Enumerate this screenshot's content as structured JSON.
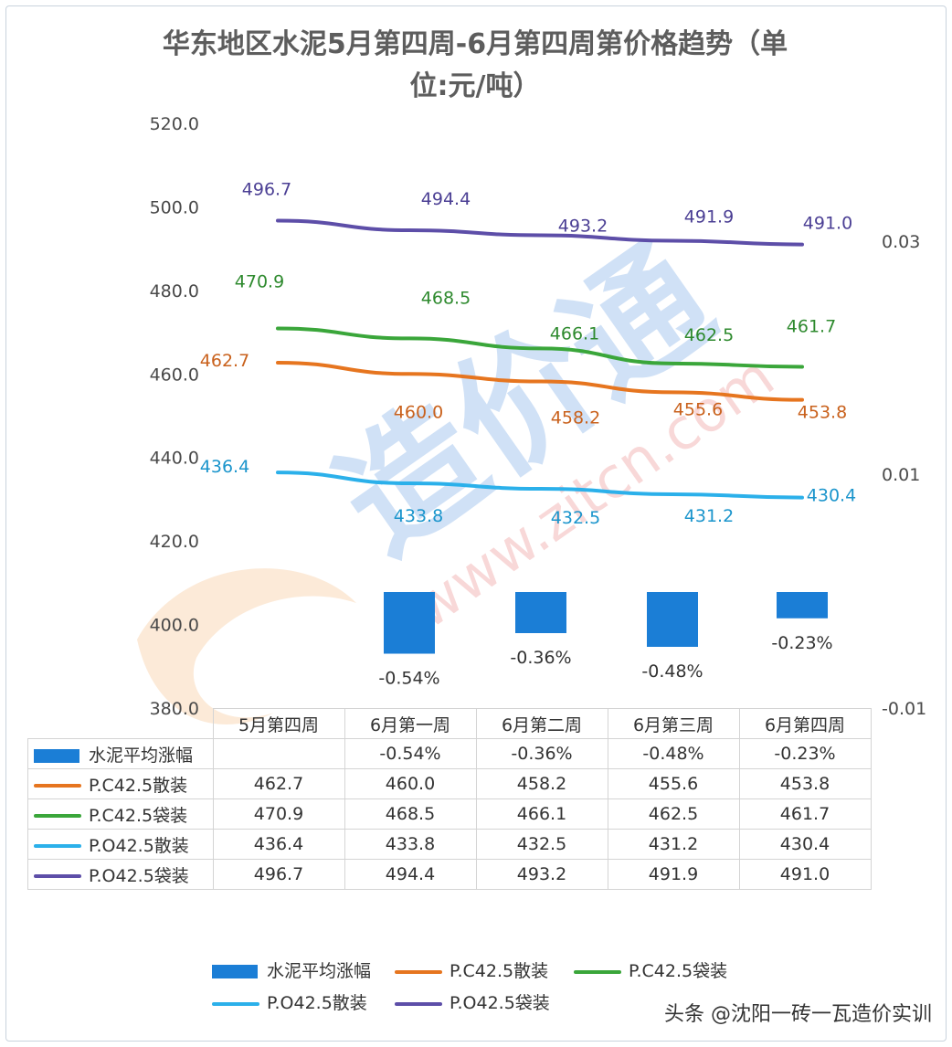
{
  "chart_data": {
    "type": "bar+line",
    "title": "华东地区水泥5月第四周-6月第四周第价格趋势（单位:元/吨）",
    "title_line1": "华东地区水泥5月第四周-6月第四周第价格趋势（单",
    "title_line2": "位:元/吨）",
    "categories": [
      "5月第四周",
      "6月第一周",
      "6月第二周",
      "6月第三周",
      "6月第四周"
    ],
    "y_left": {
      "range": [
        380,
        520
      ],
      "ticks": [
        "520.0",
        "500.0",
        "480.0",
        "460.0",
        "440.0",
        "420.0",
        "400.0",
        "380.0"
      ]
    },
    "y_right": {
      "ticks": [
        "0.03",
        "0.01",
        "-0.01"
      ]
    },
    "bar_series": {
      "name": "水泥平均涨幅",
      "values": [
        null,
        -0.54,
        -0.36,
        -0.48,
        -0.23
      ],
      "labels": [
        "",
        "-0.54%",
        "-0.36%",
        "-0.48%",
        "-0.23%"
      ],
      "color": "#1b7ed6"
    },
    "series": [
      {
        "name": "P.C42.5散装",
        "values": [
          462.7,
          460.0,
          458.2,
          455.6,
          453.8
        ],
        "labels": [
          "462.7",
          "460.0",
          "458.2",
          "455.6",
          "453.8"
        ],
        "color": "#e6751f",
        "label_color": "#c9611c"
      },
      {
        "name": "P.C42.5袋装",
        "values": [
          470.9,
          468.5,
          466.1,
          462.5,
          461.7
        ],
        "labels": [
          "470.9",
          "468.5",
          "466.1",
          "462.5",
          "461.7"
        ],
        "color": "#3aa63a",
        "label_color": "#2e8a2e"
      },
      {
        "name": "P.O42.5散装",
        "values": [
          436.4,
          433.8,
          432.5,
          431.2,
          430.4
        ],
        "labels": [
          "436.4",
          "433.8",
          "432.5",
          "431.2",
          "430.4"
        ],
        "color": "#2bb0ea",
        "label_color": "#1b95cc"
      },
      {
        "name": "P.O42.5袋装",
        "values": [
          496.7,
          494.4,
          493.2,
          491.9,
          491.0
        ],
        "labels": [
          "496.7",
          "494.4",
          "493.2",
          "491.9",
          "491.0"
        ],
        "color": "#5d4ea8",
        "label_color": "#4b3f94"
      }
    ],
    "legend": "bottom",
    "watermark": "造价通 www.zitcn.com"
  },
  "credit": "头条 @沈阳一砖一瓦造价实训"
}
